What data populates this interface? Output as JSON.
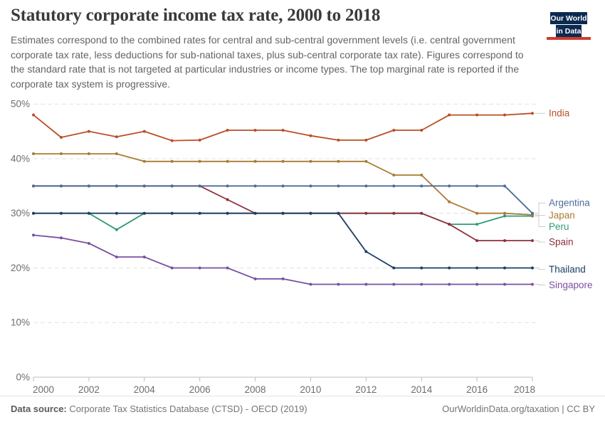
{
  "header": {
    "title": "Statutory corporate income tax rate, 2000 to 2018",
    "subtitle": "Estimates correspond to the combined rates for central and sub-central government levels (i.e. central government corporate tax rate, less deductions for sub-national taxes, plus sub-central corporate tax rate). Figures correspond to the standard rate that is not targeted at particular industries or income types. The top marginal rate is reported if the corporate tax system is progressive.",
    "logo": {
      "line1": "Our World",
      "line2": "in Data",
      "bg_color": "#0c2a50",
      "stripe_color": "#cf3b31"
    }
  },
  "footer": {
    "datasource_label": "Data source:",
    "datasource_value": " Corporate Tax Statistics Database (CTSD) - OECD (2019)",
    "credit": "OurWorldinData.org/taxation | CC BY"
  },
  "chart_data": {
    "type": "line",
    "title": "Statutory corporate income tax rate, 2000 to 2018",
    "xlabel": "",
    "ylabel": "",
    "xlim": [
      2000,
      2018
    ],
    "ylim": [
      0,
      50
    ],
    "grid": "horizontal-dashed",
    "legend_position": "right-of-line-ends",
    "years": [
      2000,
      2001,
      2002,
      2003,
      2004,
      2005,
      2006,
      2007,
      2008,
      2009,
      2010,
      2011,
      2012,
      2013,
      2014,
      2015,
      2016,
      2017,
      2018
    ],
    "x_ticks": [
      {
        "value": 2000,
        "label": "2000"
      },
      {
        "value": 2002,
        "label": "2002"
      },
      {
        "value": 2004,
        "label": "2004"
      },
      {
        "value": 2006,
        "label": "2006"
      },
      {
        "value": 2008,
        "label": "2008"
      },
      {
        "value": 2010,
        "label": "2010"
      },
      {
        "value": 2012,
        "label": "2012"
      },
      {
        "value": 2014,
        "label": "2014"
      },
      {
        "value": 2016,
        "label": "2016"
      },
      {
        "value": 2018,
        "label": "2018"
      }
    ],
    "y_ticks": [
      {
        "value": 0,
        "label": "0%"
      },
      {
        "value": 10,
        "label": "10%"
      },
      {
        "value": 20,
        "label": "20%"
      },
      {
        "value": 30,
        "label": "30%"
      },
      {
        "value": 40,
        "label": "40%"
      },
      {
        "value": 50,
        "label": "50%"
      }
    ],
    "series": [
      {
        "name": "India",
        "color": "#b94f26",
        "values": [
          48,
          43.9,
          45,
          44,
          45,
          43.3,
          43.4,
          45.2,
          45.2,
          45.2,
          44.2,
          43.4,
          43.4,
          45.2,
          45.2,
          48,
          48,
          48,
          48.3
        ]
      },
      {
        "name": "Argentina",
        "color": "#4c6d9c",
        "values": [
          35,
          35,
          35,
          35,
          35,
          35,
          35,
          35,
          35,
          35,
          35,
          35,
          35,
          35,
          35,
          35,
          35,
          35,
          30
        ]
      },
      {
        "name": "Japan",
        "color": "#ab7a33",
        "values": [
          40.9,
          40.9,
          40.9,
          40.9,
          39.5,
          39.5,
          39.5,
          39.5,
          39.5,
          39.5,
          39.5,
          39.5,
          39.5,
          37,
          37,
          32.1,
          30,
          30,
          29.7
        ]
      },
      {
        "name": "Peru",
        "color": "#2f9b78",
        "values": [
          30,
          30,
          30,
          27,
          30,
          30,
          30,
          30,
          30,
          30,
          30,
          30,
          30,
          30,
          30,
          28,
          28,
          29.5,
          29.5
        ]
      },
      {
        "name": "Spain",
        "color": "#8e3039",
        "values": [
          35,
          35,
          35,
          35,
          35,
          35,
          35,
          32.5,
          30,
          30,
          30,
          30,
          30,
          30,
          30,
          28,
          25,
          25,
          25
        ]
      },
      {
        "name": "Thailand",
        "color": "#1d3d66",
        "values": [
          30,
          30,
          30,
          30,
          30,
          30,
          30,
          30,
          30,
          30,
          30,
          30,
          23,
          20,
          20,
          20,
          20,
          20,
          20
        ]
      },
      {
        "name": "Singapore",
        "color": "#7a4fa3",
        "values": [
          26,
          25.5,
          24.5,
          22,
          22,
          20,
          20,
          20,
          18,
          18,
          17,
          17,
          17,
          17,
          17,
          17,
          17,
          17,
          17
        ]
      }
    ]
  }
}
